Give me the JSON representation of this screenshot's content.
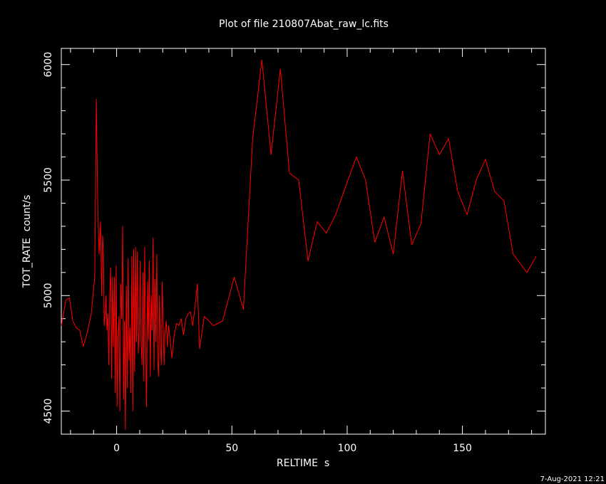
{
  "chart_data": {
    "type": "line",
    "title": "Plot of file 210807Abat_raw_lc.fits",
    "xlabel": "RELTIME  s",
    "ylabel": "TOT_RATE  count/s",
    "xlim": [
      -24,
      186
    ],
    "ylim": [
      4400,
      6070
    ],
    "x_ticks": [
      0,
      50,
      100,
      150
    ],
    "y_ticks": [
      4500,
      5000,
      5500,
      6000
    ],
    "series": [
      {
        "color": "#ff0000",
        "x": [
          -24.0,
          -22.0,
          -20.5,
          -19.0,
          -17.5,
          -16.0,
          -14.5,
          -13.0,
          -11.0,
          -9.5,
          -8.8,
          -8.2,
          -7.6,
          -7.0,
          -6.5,
          -6.1,
          -5.7,
          -5.4,
          -5.0,
          -4.6,
          -4.2,
          -3.8,
          -3.4,
          -3.0,
          -2.6,
          -2.2,
          -1.8,
          -1.4,
          -1.0,
          -0.6,
          -0.2,
          0.2,
          0.6,
          1.0,
          1.4,
          1.8,
          2.2,
          2.6,
          3.0,
          3.4,
          3.8,
          4.2,
          4.6,
          5.0,
          5.4,
          5.8,
          6.2,
          6.6,
          7.0,
          7.4,
          7.8,
          8.2,
          8.6,
          9.0,
          9.4,
          9.8,
          10.2,
          10.6,
          11.0,
          11.4,
          11.8,
          12.2,
          12.6,
          13.0,
          13.4,
          13.8,
          14.2,
          14.6,
          15.0,
          15.4,
          15.8,
          16.2,
          16.6,
          17.0,
          17.4,
          17.8,
          18.2,
          18.6,
          19.0,
          19.4,
          19.8,
          20.2,
          20.6,
          21.0,
          21.5,
          22.0,
          22.5,
          23.0,
          24.0,
          25.0,
          26.0,
          27.0,
          28.0,
          29.0,
          30.0,
          31.0,
          32.0,
          33.0,
          34.0,
          35.0,
          36.0,
          38.0,
          40.0,
          42.0,
          46.0,
          51.0,
          55.0,
          59.0,
          63.0,
          67.0,
          71.0,
          75.0,
          79.0,
          83.0,
          87.0,
          91.0,
          95.0,
          100.0,
          104.0,
          108.0,
          112.0,
          116.0,
          120.0,
          124.0,
          128.0,
          132.0,
          136.0,
          140.0,
          144.0,
          148.0,
          152.0,
          156.0,
          160.0,
          164.0,
          168.0,
          172.0,
          178.0,
          182.0
        ],
        "y": [
          4870,
          4980,
          4990,
          4890,
          4860,
          4850,
          4780,
          4830,
          4920,
          5080,
          5850,
          5400,
          5180,
          5320,
          5000,
          5260,
          5180,
          4870,
          4920,
          5000,
          4850,
          4920,
          4700,
          5000,
          5120,
          4640,
          5080,
          4780,
          5080,
          4580,
          5130,
          4520,
          4810,
          4910,
          4500,
          5050,
          4900,
          5300,
          4550,
          4890,
          4420,
          5040,
          4600,
          5160,
          4720,
          4860,
          4580,
          5170,
          4500,
          5200,
          4670,
          5210,
          4800,
          5190,
          4750,
          4850,
          5150,
          4800,
          4700,
          5100,
          4630,
          5210,
          4790,
          4520,
          5060,
          4810,
          5150,
          4650,
          5000,
          4850,
          5250,
          4680,
          5070,
          4800,
          5180,
          4720,
          4650,
          5000,
          4780,
          4700,
          5060,
          4870,
          4700,
          4840,
          4890,
          4780,
          4870,
          4830,
          4730,
          4830,
          4880,
          4870,
          4900,
          4830,
          4900,
          4920,
          4930,
          4870,
          4950,
          5050,
          4770,
          4910,
          4890,
          4870,
          4890,
          5080,
          4940,
          5680,
          6020,
          5610,
          5980,
          5530,
          5500,
          5150,
          5320,
          5270,
          5350,
          5490,
          5600,
          5500,
          5230,
          5340,
          5180,
          5540,
          5220,
          5310,
          5700,
          5610,
          5680,
          5450,
          5350,
          5500,
          5590,
          5450,
          5410,
          5180,
          5100,
          5170
        ]
      }
    ]
  },
  "footer": {
    "timestamp": "7-Aug-2021 12:21"
  }
}
